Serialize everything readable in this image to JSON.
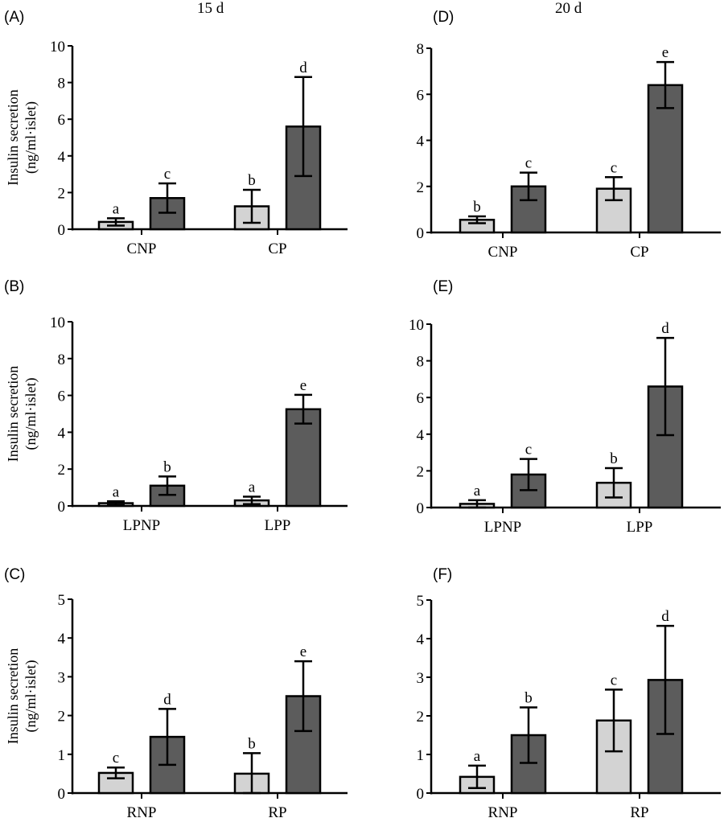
{
  "chart_data": [
    {
      "type": "bar",
      "panel": "(A)",
      "column_title": "15 d",
      "ylabel": [
        "Insulin secretion",
        "(ng/ml·islet)"
      ],
      "ylim": [
        0,
        10
      ],
      "yticks": [
        0,
        2,
        4,
        6,
        8,
        10
      ],
      "categories": [
        "CNP",
        "CP"
      ],
      "series": [
        {
          "color": "#d3d3d3",
          "values": [
            0.4,
            1.25
          ],
          "errors": [
            0.2,
            0.9
          ],
          "letters": [
            "a",
            "b"
          ]
        },
        {
          "color": "#5c5c5c",
          "values": [
            1.7,
            5.6
          ],
          "errors": [
            0.8,
            2.7
          ],
          "letters": [
            "c",
            "d"
          ]
        }
      ]
    },
    {
      "type": "bar",
      "panel": "(B)",
      "ylabel": [
        "Insulin secretion",
        "(ng/ml·islet)"
      ],
      "ylim": [
        0,
        10
      ],
      "yticks": [
        0,
        2,
        4,
        6,
        8,
        10
      ],
      "categories": [
        "LPNP",
        "LPP"
      ],
      "series": [
        {
          "color": "#d3d3d3",
          "values": [
            0.15,
            0.3
          ],
          "errors": [
            0.1,
            0.2
          ],
          "letters": [
            "a",
            "a"
          ]
        },
        {
          "color": "#5c5c5c",
          "values": [
            1.1,
            5.25
          ],
          "errors": [
            0.5,
            0.78
          ],
          "letters": [
            "b",
            "e"
          ]
        }
      ]
    },
    {
      "type": "bar",
      "panel": "(C)",
      "ylabel": [
        "Insulin secretion",
        "(ng/ml·islet)"
      ],
      "ylim": [
        0,
        5
      ],
      "yticks": [
        0,
        1,
        2,
        3,
        4,
        5
      ],
      "categories": [
        "RNP",
        "RP"
      ],
      "series": [
        {
          "color": "#d3d3d3",
          "values": [
            0.52,
            0.5
          ],
          "errors": [
            0.14,
            0.53
          ],
          "letters": [
            "c",
            "b"
          ]
        },
        {
          "color": "#5c5c5c",
          "values": [
            1.45,
            2.5
          ],
          "errors": [
            0.72,
            0.9
          ],
          "letters": [
            "d",
            "e"
          ]
        }
      ]
    },
    {
      "type": "bar",
      "panel": "(D)",
      "column_title": "20 d",
      "ylim": [
        0,
        8
      ],
      "yticks": [
        0,
        2,
        4,
        6,
        8
      ],
      "categories": [
        "CNP",
        "CP"
      ],
      "series": [
        {
          "color": "#d3d3d3",
          "values": [
            0.55,
            1.9
          ],
          "errors": [
            0.15,
            0.5
          ],
          "letters": [
            "b",
            "c"
          ]
        },
        {
          "color": "#5c5c5c",
          "values": [
            2.0,
            6.4
          ],
          "errors": [
            0.6,
            1.0
          ],
          "letters": [
            "c",
            "e"
          ]
        }
      ]
    },
    {
      "type": "bar",
      "panel": "(E)",
      "ylim": [
        0,
        10
      ],
      "yticks": [
        0,
        2,
        4,
        6,
        8,
        10
      ],
      "categories": [
        "LPNP",
        "LPP"
      ],
      "series": [
        {
          "color": "#d3d3d3",
          "values": [
            0.2,
            1.35
          ],
          "errors": [
            0.2,
            0.8
          ],
          "letters": [
            "a",
            "b"
          ]
        },
        {
          "color": "#5c5c5c",
          "values": [
            1.8,
            6.6
          ],
          "errors": [
            0.85,
            2.65
          ],
          "letters": [
            "c",
            "d"
          ]
        }
      ]
    },
    {
      "type": "bar",
      "panel": "(F)",
      "ylim": [
        0,
        5
      ],
      "yticks": [
        0,
        1,
        2,
        3,
        4,
        5
      ],
      "categories": [
        "RNP",
        "RP"
      ],
      "series": [
        {
          "color": "#d3d3d3",
          "values": [
            0.42,
            1.88
          ],
          "errors": [
            0.29,
            0.8
          ],
          "letters": [
            "a",
            "c"
          ]
        },
        {
          "color": "#5c5c5c",
          "values": [
            1.5,
            2.93
          ],
          "errors": [
            0.72,
            1.4
          ],
          "letters": [
            "b",
            "d"
          ]
        }
      ]
    }
  ]
}
